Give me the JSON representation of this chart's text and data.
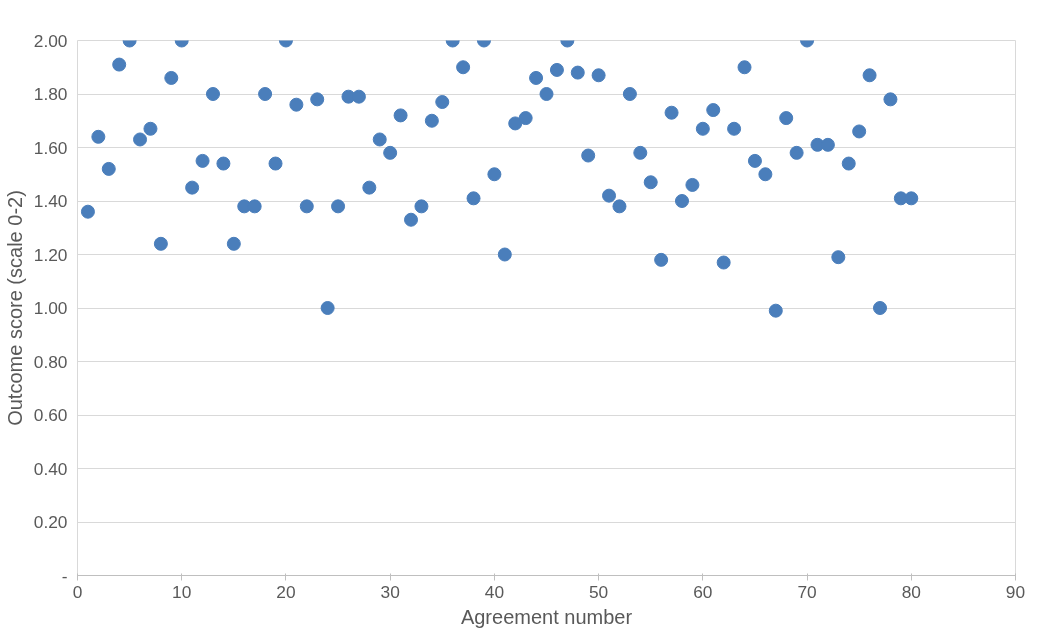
{
  "chart_data": {
    "type": "scatter",
    "xlabel": "Agreement number",
    "ylabel": "Outcome score (scale 0-2)",
    "x": [
      1,
      2,
      3,
      4,
      5,
      6,
      7,
      8,
      9,
      10,
      11,
      12,
      13,
      14,
      15,
      16,
      17,
      18,
      19,
      20,
      21,
      22,
      23,
      24,
      25,
      26,
      27,
      28,
      29,
      30,
      31,
      32,
      33,
      34,
      35,
      36,
      37,
      38,
      39,
      40,
      41,
      42,
      43,
      44,
      45,
      46,
      47,
      48,
      49,
      50,
      51,
      52,
      53,
      54,
      55,
      56,
      57,
      58,
      59,
      60,
      61,
      62,
      63,
      64,
      65,
      66,
      67,
      68,
      69,
      70,
      71,
      72,
      73,
      74,
      75,
      76,
      77,
      78,
      79,
      80
    ],
    "series": [
      {
        "color": "#4a7ebb",
        "values": [
          1.36,
          1.64,
          1.52,
          1.91,
          2.0,
          1.63,
          1.67,
          1.24,
          1.86,
          2.0,
          1.45,
          1.55,
          1.8,
          1.54,
          1.24,
          1.38,
          1.38,
          1.8,
          1.54,
          2.0,
          1.76,
          1.38,
          1.78,
          1.0,
          1.38,
          1.79,
          1.79,
          1.45,
          1.63,
          1.58,
          1.72,
          1.33,
          1.38,
          1.7,
          1.77,
          2.0,
          1.9,
          1.41,
          2.0,
          1.5,
          1.2,
          1.69,
          1.71,
          1.86,
          1.8,
          1.89,
          2.0,
          1.88,
          1.57,
          1.87,
          1.42,
          1.38,
          1.8,
          1.58,
          1.47,
          1.18,
          1.73,
          1.4,
          1.46,
          1.67,
          1.74,
          1.17,
          1.67,
          1.9,
          1.55,
          1.5,
          0.99,
          1.71,
          1.58,
          2.0,
          1.61,
          1.61,
          1.19,
          1.54,
          1.66,
          1.87,
          1.0,
          1.78,
          1.41,
          1.41
        ]
      }
    ],
    "xlim": [
      0,
      90
    ],
    "xticks": [
      0,
      10,
      20,
      30,
      40,
      50,
      60,
      70,
      80,
      90
    ],
    "ylim": [
      0,
      2
    ],
    "yticks": [
      {
        "value": 0,
        "label": "-"
      },
      {
        "value": 0.2,
        "label": "0.20"
      },
      {
        "value": 0.4,
        "label": "0.40"
      },
      {
        "value": 0.6,
        "label": "0.60"
      },
      {
        "value": 0.8,
        "label": "0.80"
      },
      {
        "value": 1.0,
        "label": "1.00"
      },
      {
        "value": 1.2,
        "label": "1.20"
      },
      {
        "value": 1.4,
        "label": "1.40"
      },
      {
        "value": 1.6,
        "label": "1.60"
      },
      {
        "value": 1.8,
        "label": "1.80"
      },
      {
        "value": 2.0,
        "label": "2.00"
      }
    ],
    "grid": "y",
    "marker": "circle"
  }
}
